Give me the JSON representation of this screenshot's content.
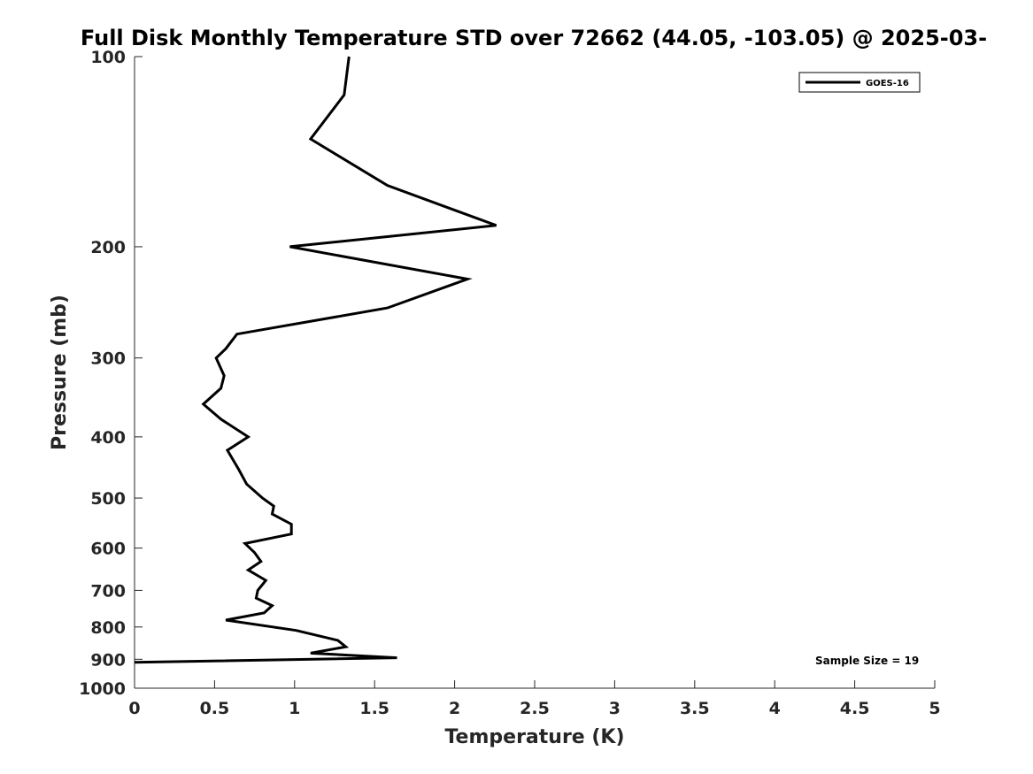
{
  "chart_data": {
    "type": "line",
    "title": "Full Disk Monthly Temperature STD over 72662 (44.05, -103.05) @ 2025-03-",
    "xlabel": "Temperature (K)",
    "ylabel": "Pressure (mb)",
    "xlim": [
      0,
      5
    ],
    "ylim": [
      100,
      1000
    ],
    "y_scale": "log",
    "y_reversed": true,
    "x_ticks": [
      0,
      0.5,
      1,
      1.5,
      2,
      2.5,
      3,
      3.5,
      4,
      4.5,
      5
    ],
    "x_tick_labels": [
      "0",
      "0.5",
      "1",
      "1.5",
      "2",
      "2.5",
      "3",
      "3.5",
      "4",
      "4.5",
      "5"
    ],
    "y_ticks": [
      100,
      200,
      300,
      400,
      500,
      600,
      700,
      800,
      900,
      1000
    ],
    "y_tick_labels": [
      "100",
      "200",
      "300",
      "400",
      "500",
      "600",
      "700",
      "800",
      "900",
      "1000"
    ],
    "grid": false,
    "legend_position": "top-right",
    "series": [
      {
        "name": "GOES-16",
        "color": "#000000",
        "x": [
          1.34,
          1.31,
          1.1,
          1.58,
          2.26,
          0.97,
          2.08,
          1.58,
          0.64,
          0.57,
          0.51,
          0.56,
          0.54,
          0.43,
          0.54,
          0.71,
          0.58,
          0.65,
          0.7,
          0.8,
          0.87,
          0.86,
          0.98,
          0.98,
          0.69,
          0.75,
          0.79,
          0.71,
          0.82,
          0.77,
          0.76,
          0.86,
          0.81,
          0.57,
          1.01,
          1.27,
          1.32,
          1.1,
          1.64,
          0.0
        ],
        "y": [
          100,
          115,
          135,
          160,
          185,
          200,
          225,
          250,
          275,
          290,
          300,
          320,
          335,
          355,
          375,
          400,
          420,
          450,
          475,
          500,
          515,
          530,
          550,
          570,
          590,
          610,
          630,
          650,
          675,
          700,
          720,
          740,
          760,
          780,
          810,
          840,
          860,
          880,
          895,
          910
        ]
      }
    ],
    "annotation": "Sample Size = 19"
  }
}
